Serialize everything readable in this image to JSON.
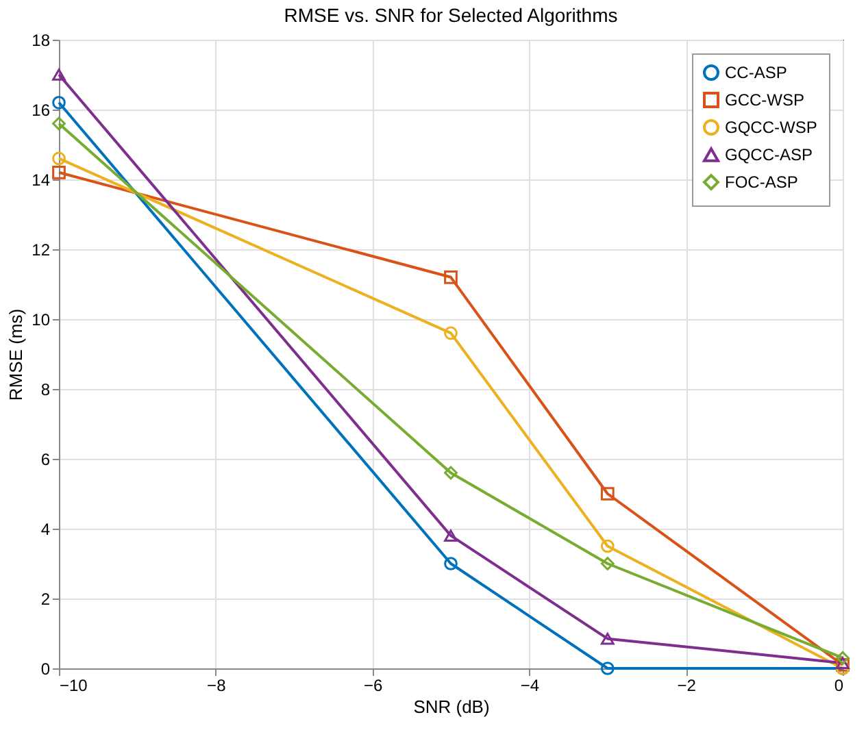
{
  "chart_data": {
    "type": "line",
    "title": "RMSE vs. SNR for Selected Algorithms",
    "xlabel": "SNR (dB)",
    "ylabel": "RMSE (ms)",
    "x": [
      -10,
      -5,
      -3,
      0
    ],
    "series": [
      {
        "name": "CC-ASP",
        "color": "#0072bd",
        "marker": "circle",
        "values": [
          16.2,
          3.0,
          0.0,
          0.0
        ]
      },
      {
        "name": "GCC-WSP",
        "color": "#d95319",
        "marker": "square",
        "values": [
          14.2,
          11.2,
          5.0,
          0.1
        ]
      },
      {
        "name": "GQCC-WSP",
        "color": "#edb120",
        "marker": "circle",
        "values": [
          14.6,
          9.6,
          3.5,
          0.0
        ]
      },
      {
        "name": "GQCC-ASP",
        "color": "#7e2f8e",
        "marker": "triangle",
        "values": [
          17.0,
          3.8,
          0.85,
          0.15
        ]
      },
      {
        "name": "FOC-ASP",
        "color": "#77ac30",
        "marker": "diamond",
        "values": [
          15.6,
          5.6,
          3.0,
          0.3
        ]
      }
    ],
    "xlim": [
      -10,
      0
    ],
    "xticks": [
      -10,
      -8,
      -6,
      -4,
      -2,
      0
    ],
    "ylim": [
      0,
      18
    ],
    "yticks": [
      0,
      2,
      4,
      6,
      8,
      10,
      12,
      14,
      16,
      18
    ],
    "grid": true,
    "legend": "top right",
    "line_style": "solid"
  }
}
